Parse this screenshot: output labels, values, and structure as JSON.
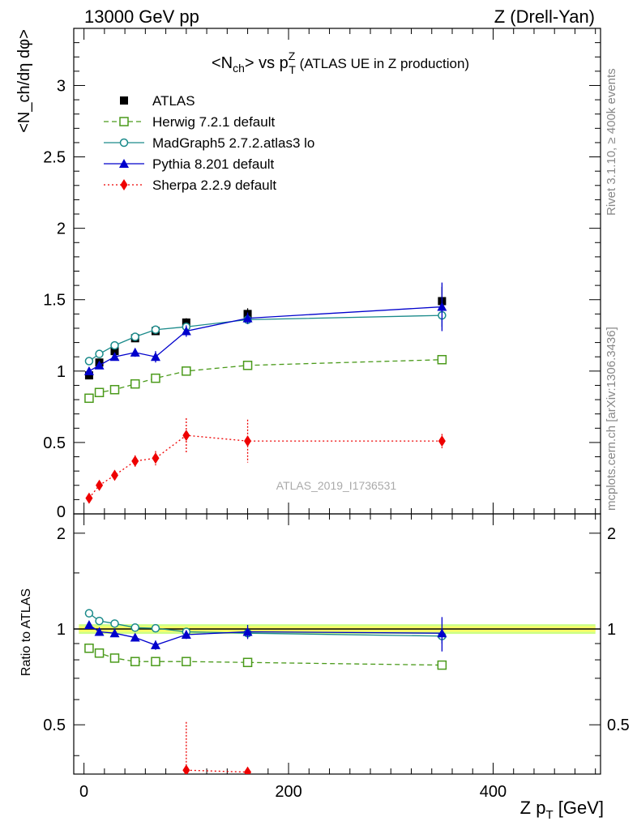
{
  "header": {
    "left": "13000 GeV pp",
    "right": "Z (Drell-Yan)"
  },
  "side_labels": {
    "rivet": "Rivet 3.1.10, ≥ 400k events",
    "mcplots": "mcplots.cern.ch [arXiv:1306.3436]"
  },
  "chart_data": [
    {
      "type": "scatter",
      "title_main": "<N",
      "title_main_sub": "ch",
      "title_vs": "> vs p",
      "title_sup": "Z",
      "title_sub": "T",
      "title_rest": " (ATLAS UE in Z production)",
      "ylabel": "<N_ch/dη dφ>",
      "watermark": "ATLAS_2019_I1736531",
      "xlim": [
        -10,
        505
      ],
      "ylim": [
        0,
        3.4
      ],
      "yticks": [
        "0",
        "0.5",
        "1",
        "1.5",
        "2",
        "2.5",
        "3"
      ],
      "x": [
        5,
        15,
        30,
        50,
        70,
        100,
        160,
        350
      ],
      "series": [
        {
          "name": "ATLAS",
          "color": "#000000",
          "marker": "square-filled",
          "line": "none",
          "values": [
            0.97,
            1.06,
            1.14,
            1.23,
            1.28,
            1.34,
            1.4,
            1.49
          ],
          "errors": [
            0.02,
            0.02,
            0.02,
            0.02,
            0.02,
            0.03,
            0.04,
            0.1
          ]
        },
        {
          "name": "Herwig 7.2.1 default",
          "color": "#4a9a1a",
          "marker": "square-open",
          "line": "dashed",
          "values": [
            0.81,
            0.85,
            0.87,
            0.91,
            0.95,
            1.0,
            1.04,
            1.08
          ],
          "errors": [
            0.01,
            0.01,
            0.01,
            0.01,
            0.01,
            0.01,
            0.01,
            0.01
          ]
        },
        {
          "name": "MadGraph5 2.7.2.atlas3 lo",
          "color": "#1a8a8a",
          "marker": "circle-open",
          "line": "solid",
          "values": [
            1.07,
            1.12,
            1.18,
            1.24,
            1.29,
            1.31,
            1.36,
            1.39
          ],
          "errors": [
            0.01,
            0.01,
            0.01,
            0.01,
            0.01,
            0.02,
            0.03,
            0.08
          ]
        },
        {
          "name": "Pythia 8.201 default",
          "color": "#0000cc",
          "marker": "triangle-filled",
          "line": "solid",
          "values": [
            1.0,
            1.04,
            1.1,
            1.13,
            1.1,
            1.28,
            1.37,
            1.45
          ],
          "errors": [
            0.02,
            0.02,
            0.02,
            0.03,
            0.04,
            0.04,
            0.04,
            0.17
          ]
        },
        {
          "name": "Sherpa 2.2.9 default",
          "color": "#ee0000",
          "marker": "diamond-filled",
          "line": "dotted",
          "values": [
            0.11,
            0.2,
            0.27,
            0.37,
            0.39,
            0.55,
            0.51,
            0.51
          ],
          "errors": [
            0.02,
            0.02,
            0.02,
            0.04,
            0.05,
            0.12,
            0.15,
            0.05
          ]
        }
      ]
    },
    {
      "type": "scatter",
      "ylabel": "Ratio to ATLAS",
      "xlabel_main": "Z p",
      "xlabel_sub": "T",
      "xlabel_rest": " [GeV]",
      "xlim": [
        -10,
        505
      ],
      "ylim": [
        0.35,
        2.3
      ],
      "log_y": true,
      "yticks": [
        "0.5",
        "1",
        "2"
      ],
      "xticks": [
        "0",
        "200",
        "400"
      ],
      "band": {
        "inner": [
          0.98,
          1.02
        ],
        "outer": [
          0.965,
          1.035
        ],
        "inner_color": "#ffff66",
        "outer_color": "#ccff88"
      },
      "x": [
        5,
        15,
        30,
        50,
        70,
        100,
        160,
        350
      ],
      "series": [
        {
          "name": "Herwig 7.2.1 default",
          "color": "#4a9a1a",
          "marker": "square-open",
          "line": "dashed",
          "values": [
            0.87,
            0.84,
            0.81,
            0.79,
            0.79,
            0.79,
            0.785,
            0.77
          ]
        },
        {
          "name": "MadGraph5 2.7.2.atlas3 lo",
          "color": "#1a8a8a",
          "marker": "circle-open",
          "line": "solid",
          "values": [
            1.12,
            1.06,
            1.04,
            1.01,
            1.005,
            0.98,
            0.97,
            0.95
          ],
          "errors": [
            0.01,
            0.01,
            0.01,
            0.01,
            0.01,
            0.02,
            0.03,
            0.05
          ]
        },
        {
          "name": "Pythia 8.201 default",
          "color": "#0000cc",
          "marker": "triangle-filled",
          "line": "solid",
          "values": [
            1.03,
            0.98,
            0.97,
            0.94,
            0.89,
            0.96,
            0.98,
            0.97
          ],
          "errors": [
            0.02,
            0.02,
            0.02,
            0.02,
            0.03,
            0.03,
            0.05,
            0.12
          ]
        },
        {
          "name": "Sherpa 2.2.9 default",
          "color": "#ee0000",
          "marker": "diamond-filled",
          "line": "dotted",
          "values": [
            null,
            null,
            null,
            null,
            null,
            0.36,
            0.355,
            null
          ],
          "errors": [
            null,
            null,
            null,
            null,
            null,
            0.15,
            null,
            null
          ]
        }
      ]
    }
  ]
}
